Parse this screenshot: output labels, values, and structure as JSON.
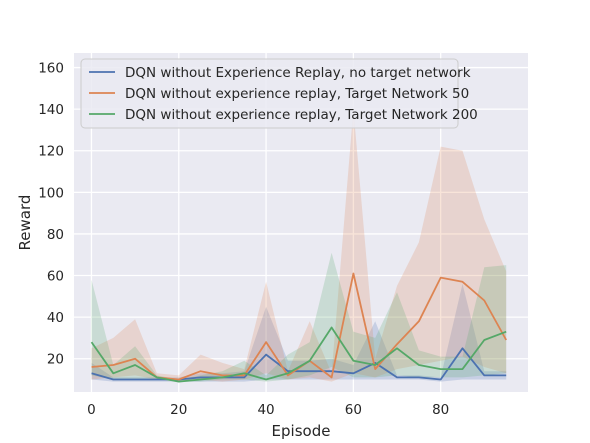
{
  "chart_data": {
    "type": "line",
    "title": "",
    "xlabel": "Episode",
    "ylabel": "Reward",
    "xlim": [
      -4,
      100
    ],
    "ylim": [
      4,
      167
    ],
    "x_ticks": [
      0,
      20,
      40,
      60,
      80
    ],
    "y_ticks": [
      20,
      40,
      60,
      80,
      100,
      120,
      140,
      160
    ],
    "grid": true,
    "legend_position": "top-left",
    "x": [
      0,
      5,
      10,
      15,
      20,
      25,
      30,
      35,
      40,
      45,
      50,
      55,
      60,
      65,
      70,
      75,
      80,
      85,
      90,
      95
    ],
    "series": [
      {
        "name": "DQN without Experience Replay, no target network",
        "color": "#4c72b0",
        "values": [
          13,
          10,
          10,
          10,
          10,
          11,
          11,
          11,
          22,
          14,
          14,
          14,
          13,
          18,
          11,
          11,
          10,
          25,
          12,
          12
        ],
        "lower": [
          10,
          9,
          9,
          9,
          9,
          9,
          9,
          9,
          10,
          10,
          10,
          10,
          10,
          10,
          10,
          10,
          9,
          10,
          10,
          10
        ],
        "upper": [
          18,
          11,
          11,
          11,
          11,
          13,
          13,
          14,
          45,
          19,
          19,
          20,
          17,
          38,
          12,
          12,
          11,
          56,
          14,
          14
        ]
      },
      {
        "name": "DQN without experience replay, Target Network 50",
        "color": "#dd8452",
        "values": [
          16,
          17,
          20,
          11,
          10,
          14,
          12,
          12,
          28,
          12,
          19,
          11,
          61,
          15,
          27,
          38,
          59,
          57,
          48,
          29
        ],
        "lower": [
          10,
          11,
          12,
          10,
          9,
          10,
          9,
          10,
          13,
          10,
          11,
          9,
          13,
          11,
          15,
          17,
          19,
          21,
          16,
          13
        ],
        "upper": [
          25,
          30,
          39,
          13,
          12,
          22,
          18,
          15,
          57,
          14,
          38,
          13,
          140,
          20,
          55,
          76,
          122,
          120,
          87,
          62
        ]
      },
      {
        "name": "DQN without experience replay, Target Network 200",
        "color": "#55a868",
        "values": [
          28,
          13,
          17,
          11,
          9,
          10,
          11,
          13,
          10,
          13,
          19,
          35,
          19,
          17,
          25,
          17,
          15,
          15,
          29,
          33
        ],
        "lower": [
          12,
          10,
          10,
          10,
          9,
          9,
          10,
          10,
          9,
          10,
          12,
          16,
          11,
          11,
          12,
          11,
          11,
          11,
          12,
          13
        ],
        "upper": [
          58,
          17,
          26,
          12,
          10,
          12,
          14,
          19,
          12,
          22,
          28,
          71,
          33,
          30,
          52,
          24,
          21,
          21,
          64,
          65
        ]
      }
    ]
  }
}
